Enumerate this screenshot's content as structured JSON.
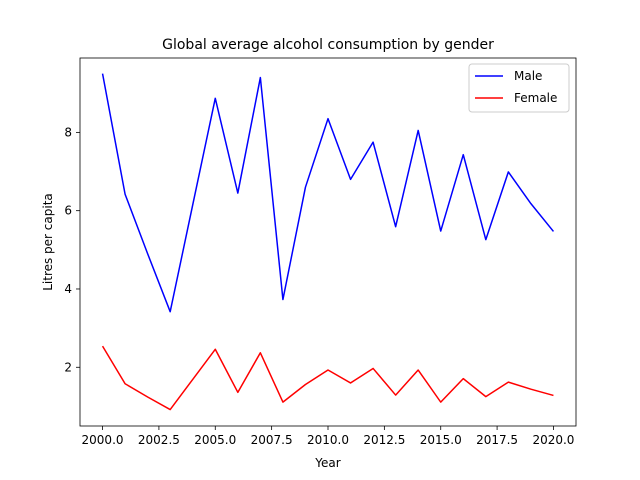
{
  "chart_data": {
    "type": "line",
    "title": "Global average alcohol consumption by gender",
    "xlabel": "Year",
    "ylabel": "Litres per capita",
    "x": [
      2000,
      2001,
      2002,
      2003,
      2004,
      2005,
      2006,
      2007,
      2008,
      2009,
      2010,
      2011,
      2012,
      2013,
      2014,
      2015,
      2016,
      2017,
      2018,
      2019,
      2020
    ],
    "xlim": [
      1999.0,
      2021.0
    ],
    "ylim": [
      0.5,
      9.9
    ],
    "xticks": [
      2000.0,
      2002.5,
      2005.0,
      2007.5,
      2010.0,
      2012.5,
      2015.0,
      2017.5,
      2020.0
    ],
    "xtick_labels": [
      "2000.0",
      "2002.5",
      "2005.0",
      "2007.5",
      "2010.0",
      "2012.5",
      "2015.0",
      "2017.5",
      "2020.0"
    ],
    "yticks": [
      2,
      4,
      6,
      8
    ],
    "ytick_labels": [
      "2",
      "4",
      "6",
      "8"
    ],
    "grid": false,
    "legend_position": "top-right",
    "series": [
      {
        "name": "Male",
        "color": "#0000ff",
        "values": [
          9.5,
          6.42,
          4.9,
          3.42,
          6.15,
          8.87,
          6.45,
          9.4,
          3.73,
          6.6,
          8.35,
          6.8,
          7.75,
          5.59,
          8.05,
          5.48,
          7.43,
          5.26,
          6.99,
          6.18,
          5.47
        ]
      },
      {
        "name": "Female",
        "color": "#ff0000",
        "values": [
          2.54,
          1.58,
          1.24,
          0.92,
          1.69,
          2.46,
          1.36,
          2.37,
          1.11,
          1.56,
          1.93,
          1.6,
          1.97,
          1.29,
          1.93,
          1.11,
          1.71,
          1.25,
          1.62,
          1.44,
          1.28
        ]
      }
    ]
  }
}
